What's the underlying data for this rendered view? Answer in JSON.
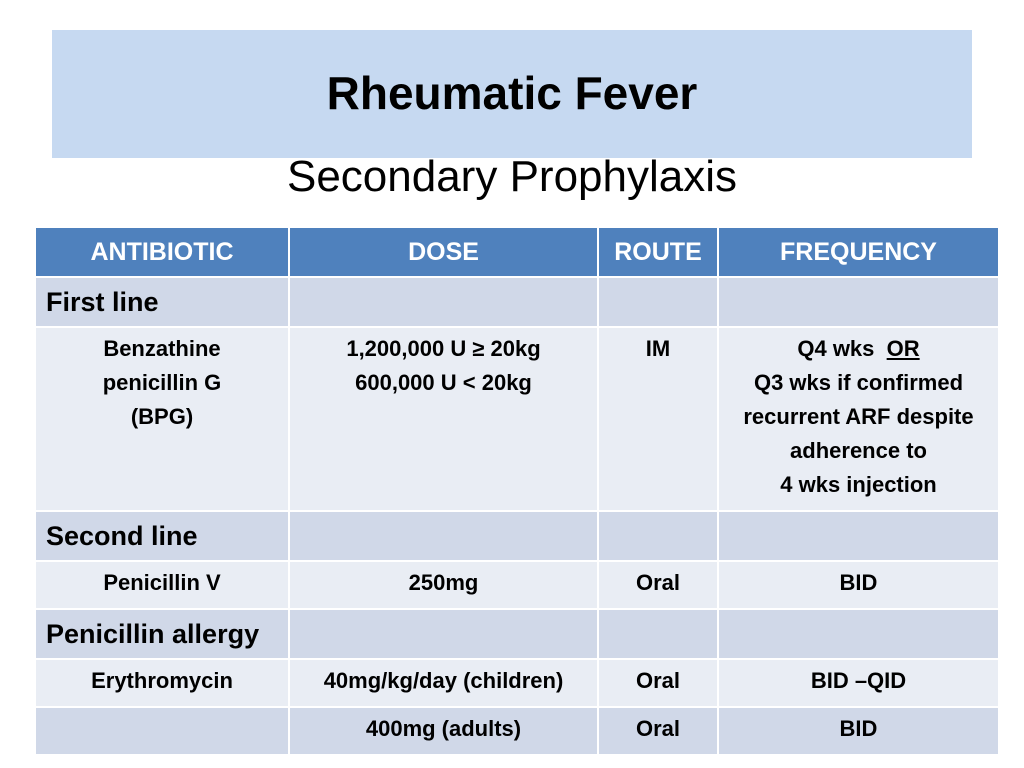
{
  "title": "Rheumatic Fever",
  "subtitle": "Secondary Prophylaxis",
  "table": {
    "header": [
      "ANTIBIOTIC",
      "DOSE",
      "ROUTE",
      "FREQUENCY"
    ],
    "sections": [
      {
        "label": "First line",
        "rows": [
          [
            [
              "Benzathine",
              "penicillin G",
              "(BPG)"
            ],
            [
              "1,200,000 U ≥ 20kg",
              "600,000 U < 20kg"
            ],
            [
              "IM"
            ],
            [
              "Q4 wks",
              "OR",
              "Q3 wks if confirmed",
              "recurrent ARF despite",
              "adherence to",
              "4 wks  injection"
            ]
          ]
        ]
      },
      {
        "label": "Second line",
        "rows": [
          [
            [
              "Penicillin V"
            ],
            [
              "250mg"
            ],
            [
              "Oral"
            ],
            [
              "BID"
            ]
          ]
        ]
      },
      {
        "label": "Penicillin allergy",
        "rows": [
          [
            [
              "Erythromycin"
            ],
            [
              "40mg/kg/day (children)"
            ],
            [
              "Oral"
            ],
            [
              "BID –QID"
            ]
          ],
          [
            [],
            [
              "400mg (adults)"
            ],
            [
              "Oral"
            ],
            [
              "BID"
            ]
          ]
        ]
      }
    ]
  }
}
